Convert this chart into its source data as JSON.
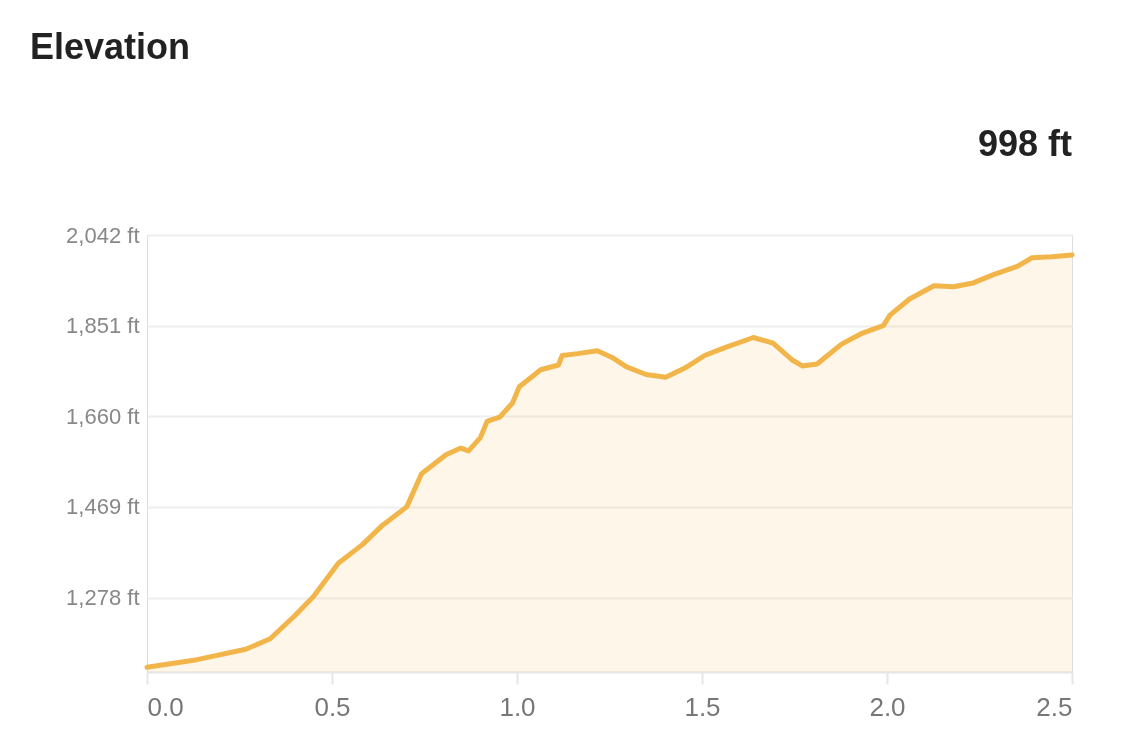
{
  "chart_data": {
    "type": "area",
    "title": "Elevation",
    "annotations": [
      "998 ft"
    ],
    "x": [
      0,
      0.135,
      0.267,
      0.333,
      0.4,
      0.45,
      0.517,
      0.583,
      0.636,
      0.702,
      0.742,
      0.808,
      0.848,
      0.869,
      0.901,
      0.919,
      0.953,
      0.988,
      1.006,
      1.032,
      1.064,
      1.112,
      1.122,
      1.164,
      1.217,
      1.257,
      1.296,
      1.349,
      1.402,
      1.455,
      1.507,
      1.56,
      1.639,
      1.692,
      1.745,
      1.771,
      1.811,
      1.877,
      1.93,
      1.99,
      2.008,
      2.061,
      2.127,
      2.18,
      2.233,
      2.286,
      2.352,
      2.392,
      2.445,
      2.5
    ],
    "series": [
      {
        "color": "#f2b54a",
        "values": [
          1131,
          1147,
          1169,
          1191,
          1240,
          1280,
          1350,
          1390,
          1430,
          1469,
          1539,
          1579,
          1593,
          1587,
          1615,
          1649,
          1658,
          1688,
          1722,
          1738,
          1758,
          1768,
          1788,
          1792,
          1798,
          1784,
          1764,
          1748,
          1742,
          1762,
          1788,
          1804,
          1826,
          1814,
          1778,
          1766,
          1770,
          1812,
          1834,
          1851,
          1873,
          1907,
          1935,
          1933,
          1941,
          1958,
          1976,
          1994,
          1996,
          2000
        ]
      }
    ],
    "xlim": [
      0,
      2.5
    ],
    "xticks": [
      {
        "value": 0,
        "label": "0.0"
      },
      {
        "value": 0.5,
        "label": "0.5"
      },
      {
        "value": 1,
        "label": "1.0"
      },
      {
        "value": 1.5,
        "label": "1.5"
      },
      {
        "value": 2,
        "label": "2.0"
      },
      {
        "value": 2.5,
        "label": "2.5"
      }
    ],
    "ylim": [
      1121,
      2042
    ],
    "yticks": [
      {
        "value": 1278,
        "label": "1,278 ft"
      },
      {
        "value": 1469,
        "label": "1,469 ft"
      },
      {
        "value": 1660,
        "label": "1,660 ft"
      },
      {
        "value": 1851,
        "label": "1,851 ft"
      },
      {
        "value": 2042,
        "label": "2,042 ft"
      }
    ],
    "grid": "y",
    "marker": "none",
    "line_style": "solid"
  }
}
